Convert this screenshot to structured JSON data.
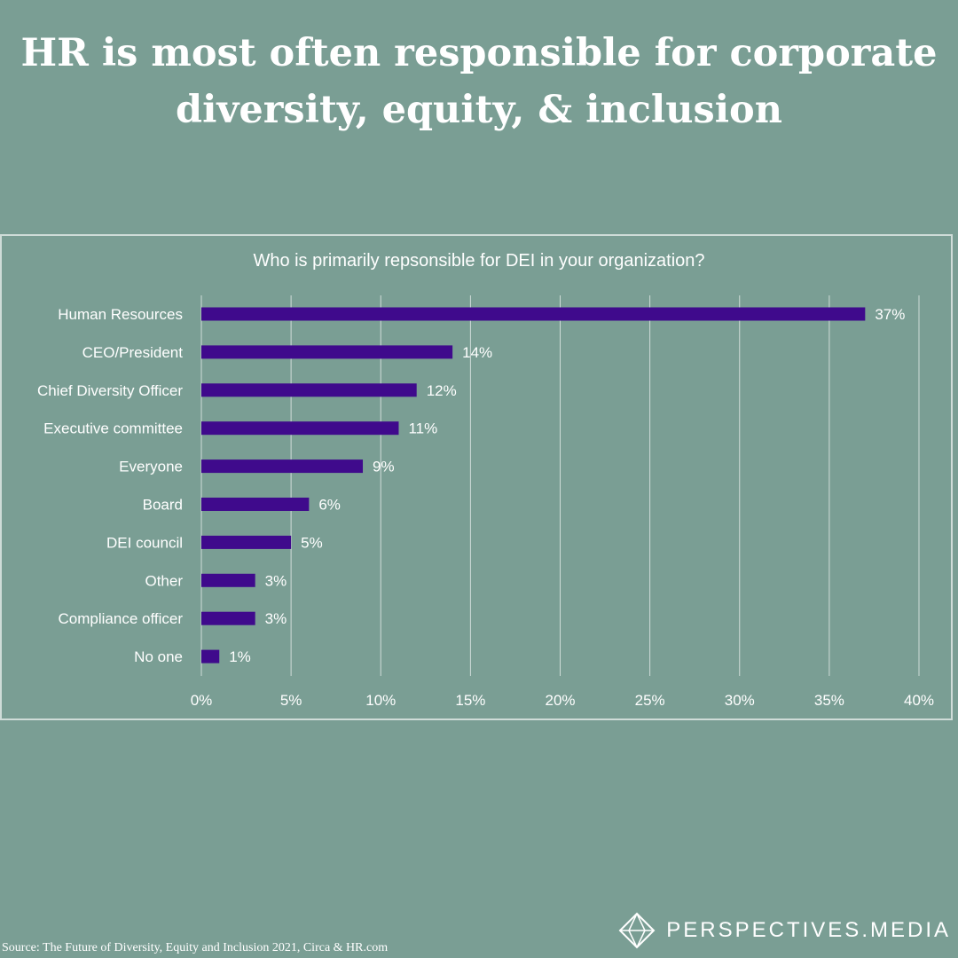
{
  "headline": {
    "line1": "HR is most often responsible for corporate",
    "line2": "diversity, equity, & inclusion"
  },
  "chart_data": {
    "type": "bar",
    "orientation": "horizontal",
    "title": "Who is primarily repsonsible for DEI in your organization?",
    "categories": [
      "Human Resources",
      "CEO/President",
      "Chief Diversity Officer",
      "Executive committee",
      "Everyone",
      "Board",
      "DEI council",
      "Other",
      "Compliance officer",
      "No one"
    ],
    "values": [
      37,
      14,
      12,
      11,
      9,
      6,
      5,
      3,
      3,
      1
    ],
    "data_labels": [
      "37%",
      "14%",
      "12%",
      "11%",
      "9%",
      "6%",
      "5%",
      "3%",
      "3%",
      "1%"
    ],
    "x_ticks": [
      "0%",
      "5%",
      "10%",
      "15%",
      "20%",
      "25%",
      "30%",
      "35%",
      "40%"
    ],
    "xlim": [
      0,
      40
    ],
    "xlabel": "",
    "ylabel": "",
    "grid": "vertical",
    "bar_color": "#3f0a8c",
    "grid_color": "#cfdcd8"
  },
  "source": "Source:  The Future of Diversity, Equity and Inclusion 2021, Circa & HR.com",
  "brand": {
    "name": "PERSPECTIVES",
    "suffix": ".MEDIA",
    "icon": "diamond-logo-icon"
  },
  "colors": {
    "background": "#7a9e94",
    "text": "#ffffff"
  }
}
